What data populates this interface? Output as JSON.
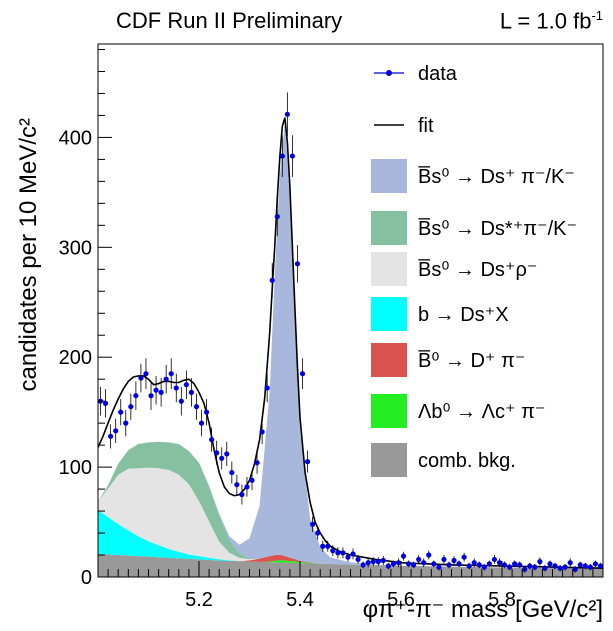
{
  "header": {
    "title": "CDF Run II Preliminary",
    "luminosity": "L = 1.0 fb",
    "luminosity_exp": "-1"
  },
  "chart_data": {
    "type": "histogram-fit",
    "xlabel": "φπ⁺-π⁻ mass [GeV/c²]",
    "ylabel": "candidates per 10 MeV/c²",
    "xlim": [
      5.0,
      6.0
    ],
    "ylim": [
      0,
      485
    ],
    "xticks": [
      5.2,
      5.4,
      5.6,
      5.8
    ],
    "yticks": [
      0,
      100,
      200,
      300,
      400
    ],
    "legend_position": "top-right",
    "legend": [
      {
        "key": "data",
        "label": "data",
        "kind": "marker",
        "color": "#0000dd"
      },
      {
        "key": "fit",
        "label": "fit",
        "kind": "line",
        "color": "#000000"
      },
      {
        "key": "sig",
        "label": "B̅s⁰ → Ds⁺ π⁻/K⁻",
        "kind": "fill",
        "color": "#a8b8dd"
      },
      {
        "key": "dsstar",
        "label": "B̅s⁰ → Ds*⁺π⁻/K⁻",
        "kind": "fill",
        "color": "#85c1a1"
      },
      {
        "key": "dsrho",
        "label": "B̅s⁰ → Ds⁺ρ⁻",
        "kind": "fill",
        "color": "#e4e4e4"
      },
      {
        "key": "bdsx",
        "label": "b → Ds⁺X",
        "kind": "fill",
        "color": "#00ffff"
      },
      {
        "key": "bd",
        "label": "B̅⁰ → D⁺ π⁻",
        "kind": "fill",
        "color": "#d9534f"
      },
      {
        "key": "lb",
        "label": "Λb⁰ → Λc⁺ π⁻",
        "kind": "fill",
        "color": "#22ee22"
      },
      {
        "key": "comb",
        "label": "comb. bkg.",
        "kind": "fill",
        "color": "#999999"
      }
    ],
    "components": {
      "x": [
        5.0,
        5.02,
        5.04,
        5.06,
        5.08,
        5.1,
        5.12,
        5.14,
        5.16,
        5.18,
        5.2,
        5.22,
        5.24,
        5.26,
        5.28,
        5.3,
        5.32,
        5.34,
        5.35,
        5.36,
        5.37,
        5.38,
        5.39,
        5.4,
        5.42,
        5.44,
        5.46,
        5.5,
        5.55,
        5.6,
        5.7,
        5.8,
        5.9,
        6.0
      ],
      "comb": [
        21,
        20.5,
        20,
        19.5,
        19,
        18.5,
        18,
        17.5,
        17,
        16.5,
        16,
        15.5,
        15,
        14.7,
        14.4,
        14.1,
        13.8,
        13.5,
        13.4,
        13.2,
        13.1,
        13,
        12.8,
        12.6,
        12.3,
        12,
        11.8,
        11.3,
        10.7,
        10.2,
        9.4,
        8.7,
        8.1,
        7.6
      ],
      "bdsx": [
        40,
        34,
        28,
        23,
        18,
        14,
        11,
        8,
        6,
        4,
        3,
        2,
        1,
        0.5,
        0,
        0,
        0,
        0,
        0,
        0,
        0,
        0,
        0,
        0,
        0,
        0,
        0,
        0,
        0,
        0,
        0,
        0,
        0,
        0
      ],
      "lb": [
        0,
        0,
        0,
        0,
        0,
        0,
        0,
        0,
        0,
        0,
        0,
        0,
        0,
        0,
        0,
        0,
        0,
        0.5,
        1.5,
        2,
        2,
        1.5,
        1.5,
        1,
        0.5,
        0.2,
        0,
        0,
        0,
        0,
        0,
        0,
        0,
        0
      ],
      "bd": [
        0,
        0,
        0,
        0,
        0,
        0,
        0,
        0,
        0,
        0,
        0,
        0,
        0,
        0,
        0,
        1,
        3,
        5,
        5,
        5,
        4,
        3,
        2,
        1,
        0.5,
        0,
        0,
        0,
        0,
        0,
        0,
        0,
        0,
        0
      ],
      "dsrho": [
        8,
        26,
        45,
        56,
        62,
        67,
        70,
        72,
        70,
        64,
        50,
        33,
        16,
        7,
        3,
        1,
        0,
        0,
        0,
        0,
        0,
        0,
        0,
        0,
        0,
        0,
        0,
        0,
        0,
        0,
        0,
        0,
        0,
        0
      ],
      "dsstar": [
        0,
        3,
        10,
        17,
        22,
        23,
        24,
        25,
        28,
        30,
        35,
        32,
        24,
        12,
        4,
        1,
        0,
        0,
        0,
        0,
        0,
        0,
        0,
        0,
        0,
        0,
        0,
        0,
        0,
        0,
        0,
        0,
        0,
        0
      ],
      "sig": [
        0,
        0,
        0,
        0,
        0,
        0,
        0,
        0,
        0,
        0,
        0,
        0.5,
        1.5,
        3,
        8,
        18,
        48,
        150,
        255,
        345,
        395,
        330,
        220,
        120,
        40,
        15,
        6,
        2,
        0.5,
        0,
        0,
        0,
        0,
        0
      ]
    },
    "fit": {
      "x": [
        5.0,
        5.01,
        5.02,
        5.03,
        5.04,
        5.05,
        5.06,
        5.07,
        5.08,
        5.09,
        5.1,
        5.11,
        5.12,
        5.13,
        5.14,
        5.15,
        5.16,
        5.17,
        5.18,
        5.19,
        5.2,
        5.21,
        5.22,
        5.23,
        5.24,
        5.25,
        5.26,
        5.27,
        5.28,
        5.29,
        5.3,
        5.31,
        5.32,
        5.33,
        5.34,
        5.345,
        5.35,
        5.355,
        5.36,
        5.365,
        5.37,
        5.375,
        5.38,
        5.385,
        5.39,
        5.395,
        5.4,
        5.41,
        5.42,
        5.43,
        5.44,
        5.45,
        5.46,
        5.48,
        5.5,
        5.55,
        5.6,
        5.7,
        5.8,
        5.9,
        6.0
      ],
      "y": [
        118,
        128,
        140,
        152,
        162,
        171,
        178,
        182,
        183,
        183,
        180,
        175,
        176,
        178,
        178,
        177,
        177,
        179,
        180,
        176,
        168,
        158,
        140,
        115,
        95,
        82,
        76,
        74,
        75,
        80,
        88,
        103,
        125,
        163,
        222,
        262,
        300,
        345,
        382,
        410,
        418,
        395,
        355,
        300,
        245,
        190,
        145,
        95,
        68,
        50,
        40,
        33,
        28,
        23,
        20,
        16,
        13,
        11,
        10,
        9,
        8
      ]
    },
    "data": {
      "x": [
        5.005,
        5.015,
        5.025,
        5.035,
        5.045,
        5.055,
        5.065,
        5.075,
        5.085,
        5.095,
        5.105,
        5.115,
        5.125,
        5.135,
        5.145,
        5.155,
        5.165,
        5.175,
        5.185,
        5.195,
        5.205,
        5.215,
        5.225,
        5.235,
        5.245,
        5.255,
        5.265,
        5.275,
        5.285,
        5.295,
        5.305,
        5.315,
        5.325,
        5.335,
        5.345,
        5.355,
        5.365,
        5.375,
        5.385,
        5.395,
        5.405,
        5.415,
        5.425,
        5.435,
        5.445,
        5.455,
        5.465,
        5.475,
        5.485,
        5.495,
        5.505,
        5.515,
        5.525,
        5.535,
        5.545,
        5.555,
        5.565,
        5.575,
        5.585,
        5.595,
        5.605,
        5.615,
        5.625,
        5.635,
        5.645,
        5.655,
        5.665,
        5.675,
        5.685,
        5.695,
        5.705,
        5.715,
        5.725,
        5.735,
        5.745,
        5.755,
        5.765,
        5.775,
        5.785,
        5.795,
        5.805,
        5.815,
        5.825,
        5.835,
        5.845,
        5.855,
        5.865,
        5.875,
        5.885,
        5.895,
        5.905,
        5.915,
        5.925,
        5.935,
        5.945,
        5.955,
        5.965,
        5.975,
        5.985,
        5.995
      ],
      "y": [
        160,
        158,
        128,
        133,
        150,
        140,
        155,
        165,
        181,
        185,
        165,
        170,
        168,
        180,
        185,
        172,
        160,
        175,
        168,
        155,
        140,
        150,
        125,
        113,
        108,
        112,
        95,
        84,
        75,
        82,
        88,
        104,
        132,
        172,
        270,
        328,
        383,
        421,
        383,
        285,
        185,
        105,
        48,
        40,
        28,
        28,
        24,
        22,
        22,
        18,
        21,
        16,
        11,
        13,
        14,
        14,
        15,
        10,
        12,
        13,
        19,
        12,
        11,
        16,
        13,
        20,
        12,
        9,
        16,
        11,
        15,
        12,
        18,
        10,
        13,
        11,
        9,
        12,
        16,
        13,
        11,
        9,
        12,
        11,
        7,
        10,
        9,
        14,
        8,
        12,
        10,
        8,
        9,
        13,
        7,
        11,
        10,
        9,
        12,
        10
      ],
      "err": [
        13,
        13,
        11,
        11,
        12,
        12,
        12,
        13,
        13,
        14,
        13,
        13,
        13,
        13,
        14,
        13,
        13,
        13,
        13,
        12,
        12,
        12,
        11,
        11,
        10,
        11,
        10,
        9,
        9,
        9,
        9,
        10,
        11,
        13,
        16,
        18,
        19,
        20,
        19,
        17,
        14,
        10,
        7,
        6,
        5,
        5,
        5,
        5,
        5,
        4,
        5,
        4,
        3,
        4,
        4,
        4,
        4,
        3,
        3,
        4,
        4,
        3,
        3,
        4,
        4,
        4,
        3,
        3,
        4,
        3,
        4,
        3,
        4,
        3,
        4,
        3,
        3,
        3,
        4,
        4,
        3,
        3,
        3,
        3,
        3,
        3,
        3,
        4,
        3,
        3,
        3,
        3,
        3,
        4,
        3,
        3,
        3,
        3,
        3,
        3
      ]
    }
  }
}
